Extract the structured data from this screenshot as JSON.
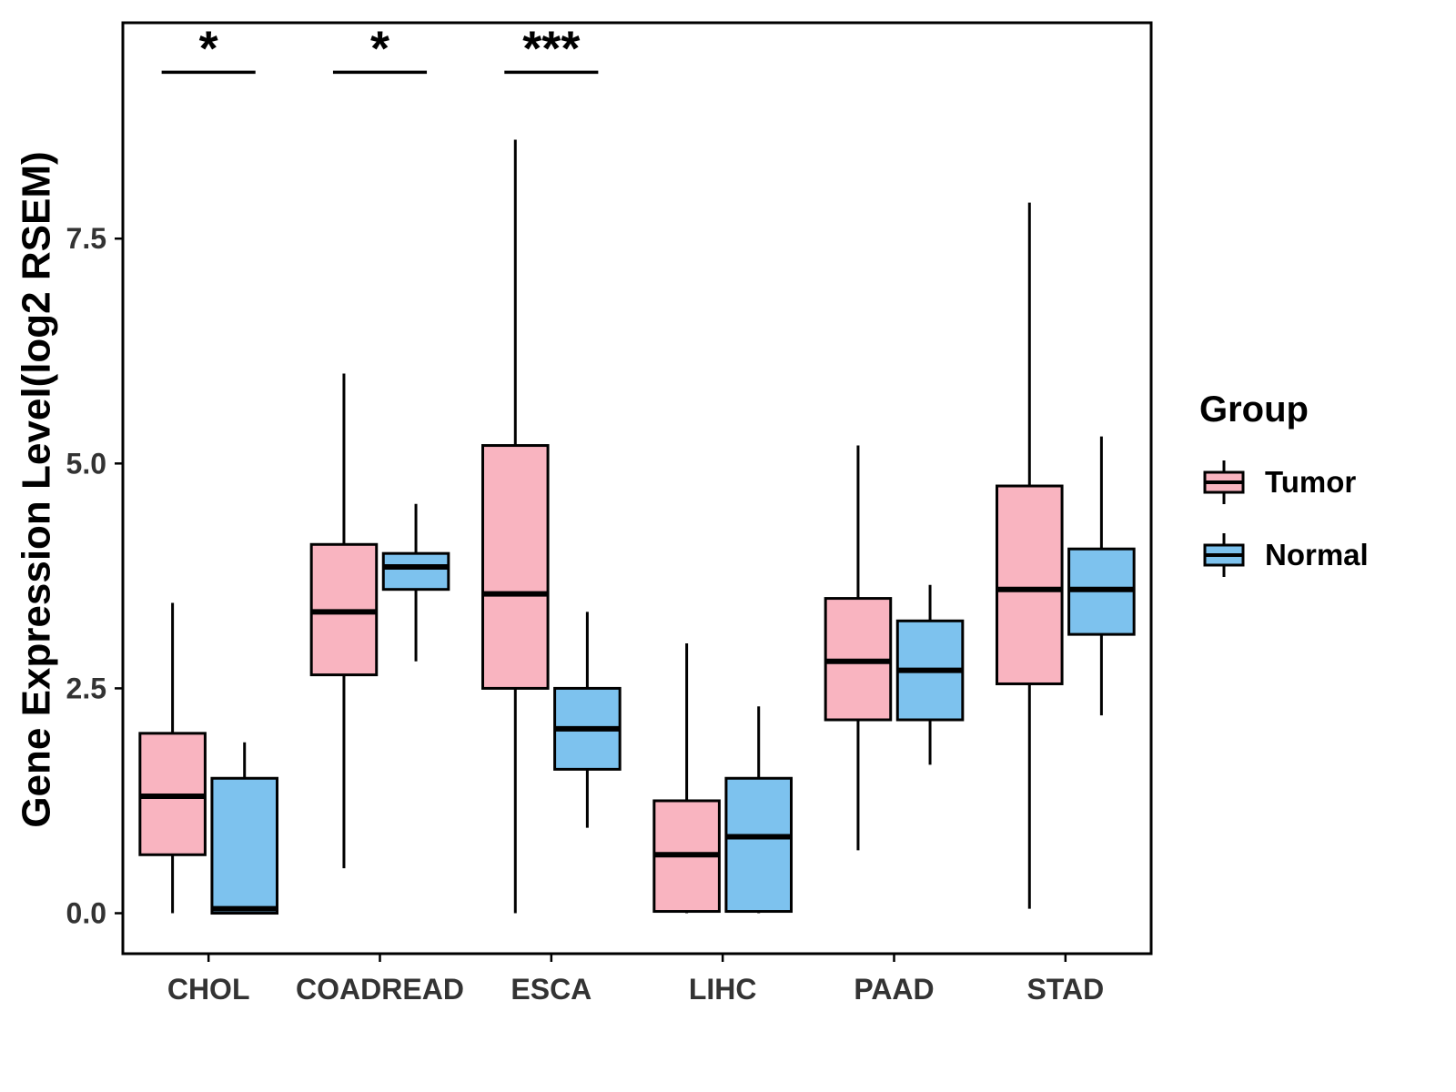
{
  "chart_data": {
    "type": "boxplot",
    "title": "",
    "xlabel": "",
    "ylabel": "Gene Expression Level(log2 RSEM)",
    "ylim": [
      -0.45,
      9.9
    ],
    "yticks": [
      0.0,
      2.5,
      5.0,
      7.5
    ],
    "grid": false,
    "categories": [
      "CHOL",
      "COADREAD",
      "ESCA",
      "LIHC",
      "PAAD",
      "STAD"
    ],
    "legend": {
      "title": "Group",
      "position": "right",
      "entries": [
        {
          "label": "Tumor",
          "color": "#F9B4C0"
        },
        {
          "label": "Normal",
          "color": "#7DC2EE"
        }
      ]
    },
    "series": [
      {
        "name": "Tumor",
        "color": "#F9B4C0",
        "boxes": [
          {
            "category": "CHOL",
            "low": 0.0,
            "q1": 0.65,
            "median": 1.3,
            "q3": 2.0,
            "high": 3.45
          },
          {
            "category": "COADREAD",
            "low": 0.5,
            "q1": 2.65,
            "median": 3.35,
            "q3": 4.1,
            "high": 6.0
          },
          {
            "category": "ESCA",
            "low": 0.0,
            "q1": 2.5,
            "median": 3.55,
            "q3": 5.2,
            "high": 8.6
          },
          {
            "category": "LIHC",
            "low": 0.0,
            "q1": 0.02,
            "median": 0.65,
            "q3": 1.25,
            "high": 3.0
          },
          {
            "category": "PAAD",
            "low": 0.7,
            "q1": 2.15,
            "median": 2.8,
            "q3": 3.5,
            "high": 5.2
          },
          {
            "category": "STAD",
            "low": 0.05,
            "q1": 2.55,
            "median": 3.6,
            "q3": 4.75,
            "high": 7.9
          }
        ]
      },
      {
        "name": "Normal",
        "color": "#7DC2EE",
        "boxes": [
          {
            "category": "CHOL",
            "low": 0.0,
            "q1": 0.0,
            "median": 0.05,
            "q3": 1.5,
            "high": 1.9
          },
          {
            "category": "COADREAD",
            "low": 2.8,
            "q1": 3.6,
            "median": 3.85,
            "q3": 4.0,
            "high": 4.55
          },
          {
            "category": "ESCA",
            "low": 0.95,
            "q1": 1.6,
            "median": 2.05,
            "q3": 2.5,
            "high": 3.35
          },
          {
            "category": "LIHC",
            "low": 0.0,
            "q1": 0.02,
            "median": 0.85,
            "q3": 1.5,
            "high": 2.3
          },
          {
            "category": "PAAD",
            "low": 1.65,
            "q1": 2.15,
            "median": 2.7,
            "q3": 3.25,
            "high": 3.65
          },
          {
            "category": "STAD",
            "low": 2.2,
            "q1": 3.1,
            "median": 3.6,
            "q3": 4.05,
            "high": 5.3
          }
        ]
      }
    ],
    "annotations": [
      {
        "category": "CHOL",
        "label": "*",
        "bar_y": 9.35
      },
      {
        "category": "COADREAD",
        "label": "*",
        "bar_y": 9.35
      },
      {
        "category": "ESCA",
        "label": "***",
        "bar_y": 9.35
      }
    ],
    "colors": {
      "box_stroke": "#000000",
      "tick_text": "#333333",
      "axis_text": "#000000"
    }
  }
}
